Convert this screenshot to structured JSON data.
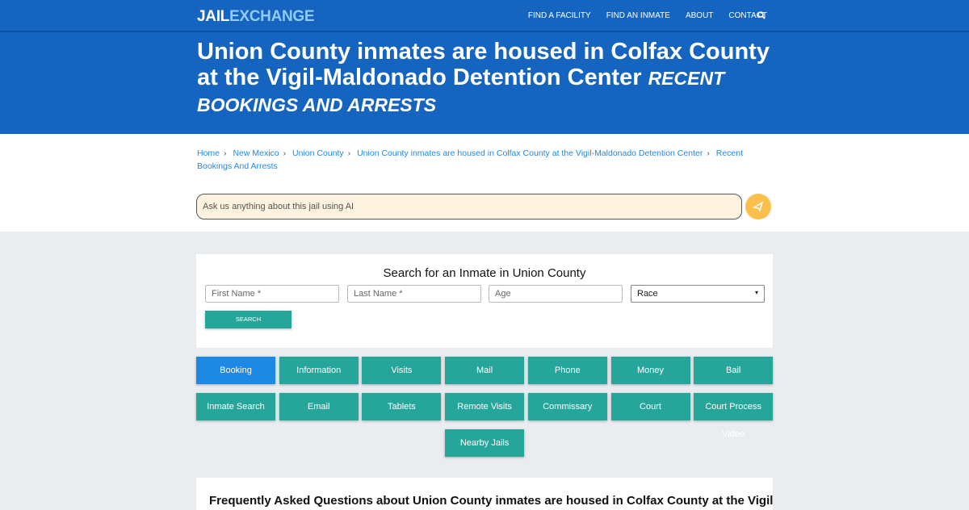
{
  "nav": {
    "logo_a": "JAIL",
    "logo_b": "EXCHANGE",
    "items": [
      "FIND A FACILITY",
      "FIND AN INMATE",
      "ABOUT",
      "CONTACT"
    ]
  },
  "hero": {
    "title": "Union County inmates are housed in Colfax County at the Vigil-Maldonado Detention Center",
    "subtitle": "RECENT BOOKINGS AND ARRESTS"
  },
  "breadcrumb": [
    "Home",
    "New Mexico",
    "Union County",
    "Union County inmates are housed in Colfax County at the Vigil-Maldonado Detention Center",
    "Recent Bookings And Arrests"
  ],
  "ai": {
    "placeholder": "Ask us anything about this jail using AI"
  },
  "search": {
    "title": "Search for an Inmate in Union County",
    "first": "First Name *",
    "last": "Last Name *",
    "age": "Age",
    "race": "Race",
    "button": "SEARCH"
  },
  "buttons": [
    "Booking",
    "Information",
    "Visits",
    "Mail",
    "Phone",
    "Money",
    "Bail",
    "Inmate Search",
    "Email",
    "Tablets",
    "Remote Visits",
    "Commissary",
    "Court",
    "Court Process Video",
    "Nearby Jails"
  ],
  "colors": {
    "brand": "#1565c0",
    "teal": "#26a69a",
    "active": "#1e88e5",
    "send": "#fbc04b"
  },
  "faq": {
    "title": "Frequently Asked Questions about Union County inmates are housed in Colfax County at the Vigil-Maldonado Detention Center"
  }
}
